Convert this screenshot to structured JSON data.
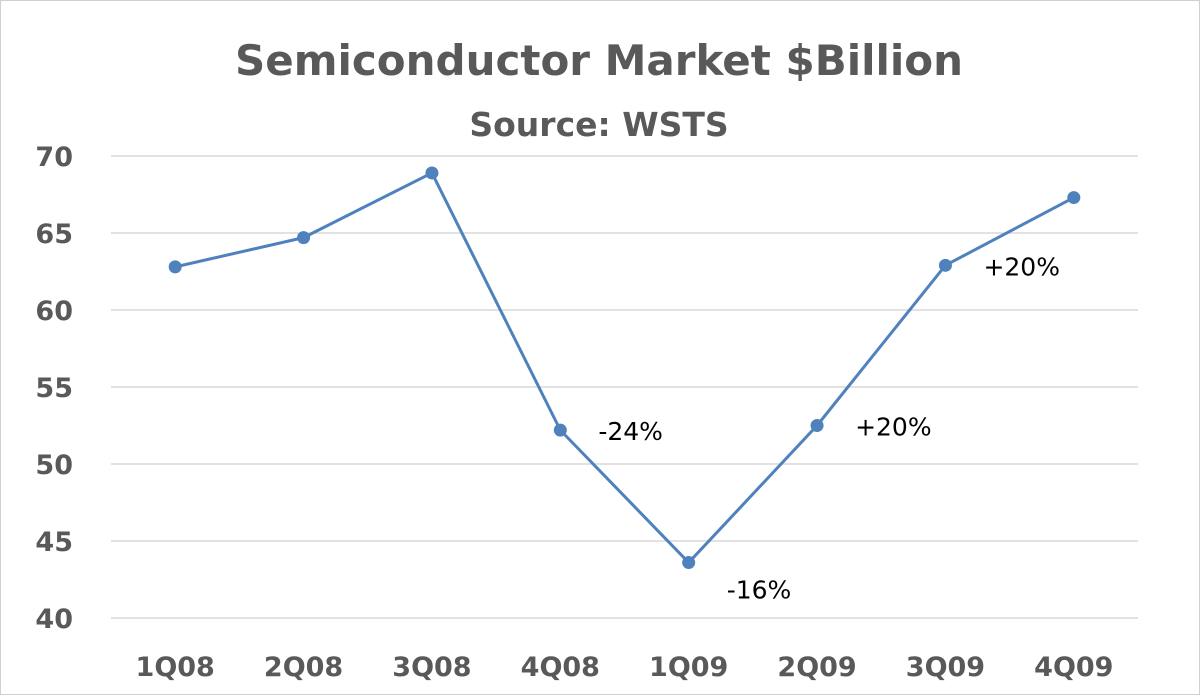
{
  "chart_data": {
    "type": "line",
    "title": "Semiconductor Market $Billion",
    "subtitle": "Source: WSTS",
    "categories": [
      "1Q08",
      "2Q08",
      "3Q08",
      "4Q08",
      "1Q09",
      "2Q09",
      "3Q09",
      "4Q09"
    ],
    "series": [
      {
        "values": [
          62.8,
          64.7,
          68.9,
          52.2,
          43.6,
          52.5,
          62.9,
          67.3
        ]
      }
    ],
    "yticks": [
      "40",
      "45",
      "50",
      "55",
      "60",
      "65",
      "70"
    ],
    "ylim": [
      40,
      70
    ],
    "grid": true,
    "annotations": [
      {
        "index": 3,
        "text": "-24%"
      },
      {
        "index": 4,
        "text": "-16%"
      },
      {
        "index": 5,
        "text": "+20%"
      },
      {
        "index": 6,
        "text": "+20%"
      }
    ],
    "colors": {
      "line": "#4f81bd",
      "grid": "#d9d9d9",
      "text": "#595959"
    }
  }
}
